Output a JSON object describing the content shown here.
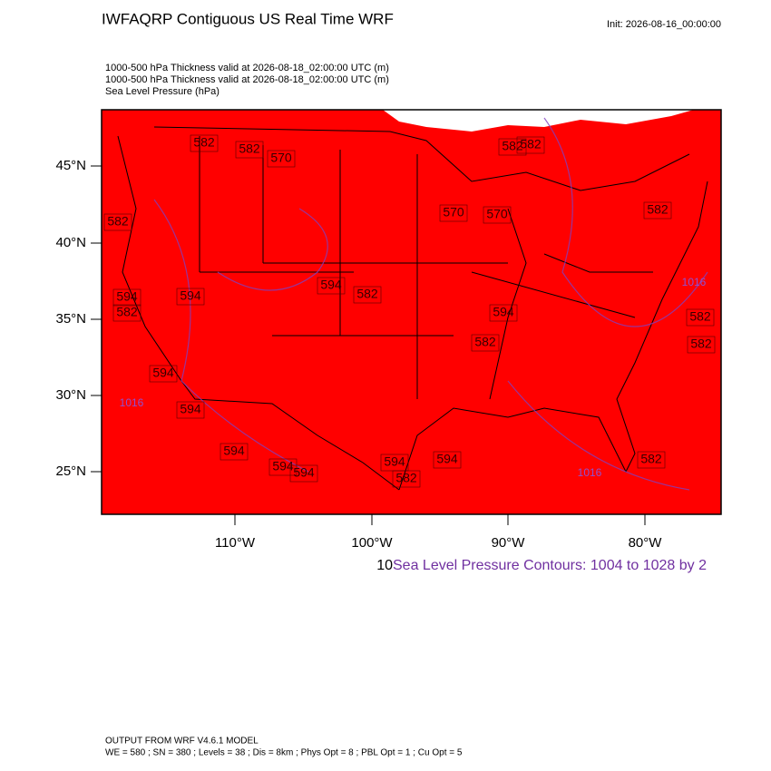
{
  "header": {
    "title": "IWFAQRP Contiguous US Real Time WRF",
    "init": "Init: 2026-08-16_00:00:00",
    "fields": [
      "1000-500 hPa Thickness valid at 2026-08-18_02:00:00 UTC   (m)",
      "1000-500 hPa Thickness valid at 2026-08-18_02:00:00 UTC   (m)",
      "Sea Level Pressure   (hPa)"
    ]
  },
  "map": {
    "lat_labels": [
      "45°N",
      "40°N",
      "35°N",
      "30°N",
      "25°N"
    ],
    "lon_labels": [
      "110°W",
      "100°W",
      "90°W",
      "80°W"
    ],
    "thickness_labels": [
      "582",
      "582",
      "582",
      "570",
      "570",
      "570",
      "582",
      "582",
      "582",
      "582",
      "594",
      "594",
      "594",
      "582",
      "594",
      "594",
      "594",
      "594",
      "594",
      "594",
      "594",
      "582",
      "594",
      "582",
      "582",
      "582",
      "582"
    ],
    "pressure_labels": [
      "1016",
      "1016",
      "1016"
    ]
  },
  "legend": {
    "prefix": "10",
    "text": "Sea Level Pressure Contours: 1004 to 1028 by 2"
  },
  "footer": [
    "OUTPUT FROM WRF V4.6.1 MODEL",
    "WE = 580 ; SN = 380 ; Levels = 38 ; Dis = 8km ; Phys Opt = 8 ; PBL Opt = 1 ; Cu Opt = 5"
  ]
}
